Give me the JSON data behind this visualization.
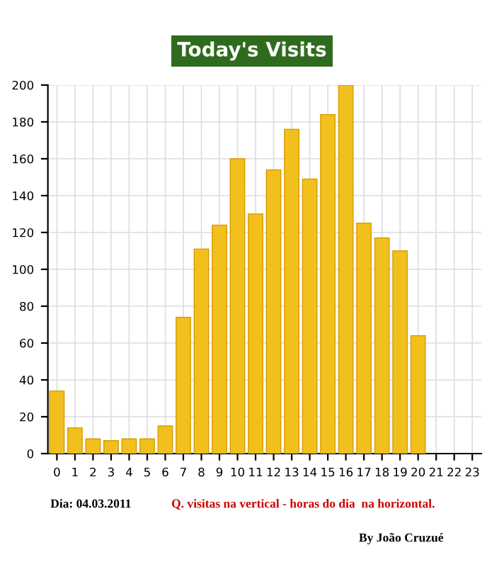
{
  "chart_data": {
    "type": "bar",
    "title": "Today's Visits",
    "categories": [
      "0",
      "1",
      "2",
      "3",
      "4",
      "5",
      "6",
      "7",
      "8",
      "9",
      "10",
      "11",
      "12",
      "13",
      "14",
      "15",
      "16",
      "17",
      "18",
      "19",
      "20",
      "21",
      "22",
      "23"
    ],
    "values": [
      34,
      14,
      8,
      7,
      8,
      8,
      15,
      74,
      111,
      124,
      160,
      130,
      154,
      176,
      149,
      184,
      200,
      125,
      117,
      110,
      64,
      null,
      null,
      null
    ],
    "color": "#f2c01c",
    "ylim": [
      0,
      200
    ],
    "yticks": [
      0,
      20,
      40,
      60,
      80,
      100,
      120,
      140,
      160,
      180,
      200
    ],
    "grid": true,
    "annotations": [
      "Dia: 04.03.2011",
      "Q. visitas na vertical - horas do dia  na horizontal.",
      "By João Cruzué"
    ]
  }
}
